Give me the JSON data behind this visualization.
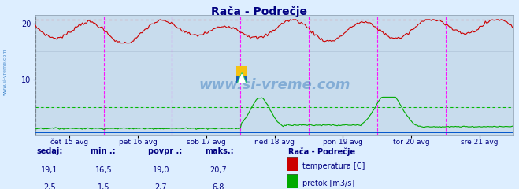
{
  "title": "Rača - Podrečje",
  "title_color": "#000080",
  "bg_color": "#ddeeff",
  "plot_bg_color": "#c8dced",
  "grid_color": "#b0c4d8",
  "x_labels": [
    "čet 15 avg",
    "pet 16 avg",
    "sob 17 avg",
    "ned 18 avg",
    "pon 19 avg",
    "tor 20 avg",
    "sre 21 avg"
  ],
  "x_label_color": "#000080",
  "ylim": [
    0,
    21.5
  ],
  "yticks": [
    10,
    20
  ],
  "ylabel_color": "#000080",
  "vline_colors": [
    "#404040",
    "#ff00ff",
    "#ff00ff",
    "#ff00ff",
    "#ff00ff",
    "#ff00ff",
    "#ff00ff"
  ],
  "hline_dotted_color": "#ff0000",
  "hline_dotted_y": 20.7,
  "hline_green_y": 5.0,
  "hline_green_color": "#00bb00",
  "temp_color": "#cc0000",
  "flow_color": "#00aa00",
  "watermark_text": "www.si-vreme.com",
  "watermark_color": "#4080c0",
  "watermark_alpha": 0.5,
  "sidebar_text": "www.si-vreme.com",
  "sidebar_color": "#4488cc",
  "footer_label_color": "#000080",
  "footer_value_color": "#000080",
  "legend_title": "Rača - Podrečje",
  "legend_title_color": "#000080",
  "footer_cols": [
    "sedaj:",
    "min .:",
    "povpr .:",
    "maks.:"
  ],
  "footer_temp": [
    "19,1",
    "16,5",
    "19,0",
    "20,7"
  ],
  "footer_flow": [
    "2,5",
    "1,5",
    "2,7",
    "6,8"
  ],
  "legend_items": [
    "temperatura [C]",
    "pretok [m3/s]"
  ],
  "legend_colors": [
    "#cc0000",
    "#00aa00"
  ],
  "n_points": 336,
  "day_ticks_x": [
    0,
    48,
    96,
    144,
    192,
    240,
    288,
    335
  ],
  "x_tick_positions": [
    24,
    72,
    120,
    168,
    216,
    264,
    312
  ],
  "arrow_color": "#aa0000"
}
